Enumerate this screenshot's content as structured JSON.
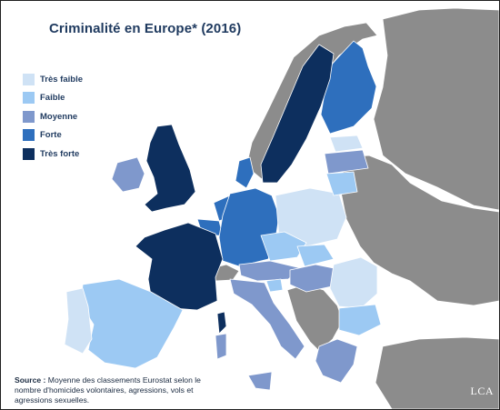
{
  "title": "Criminalité en Europe* (2016)",
  "legend": [
    {
      "label": "Très faible",
      "color": "#cfe2f5"
    },
    {
      "label": "Faible",
      "color": "#9cc9f3"
    },
    {
      "label": "Moyenne",
      "color": "#7f98cc"
    },
    {
      "label": "Forte",
      "color": "#2e6fbd"
    },
    {
      "label": "Très forte",
      "color": "#0d2f5e"
    }
  ],
  "colors": {
    "non_classified": "#8c8c8c",
    "sea": "#ffffff",
    "border": "#ffffff"
  },
  "source": {
    "label": "Source :",
    "text": "Moyenne des classements Eurostat selon le nombre d'homicides volontaires, agressions, vols et agressions sexuelles."
  },
  "logo": "LCA",
  "countries": [
    {
      "name": "France",
      "level": "Très forte"
    },
    {
      "name": "United Kingdom",
      "level": "Très forte"
    },
    {
      "name": "Sweden",
      "level": "Très forte"
    },
    {
      "name": "Finland",
      "level": "Forte"
    },
    {
      "name": "Germany",
      "level": "Forte"
    },
    {
      "name": "Denmark",
      "level": "Forte"
    },
    {
      "name": "Belgium",
      "level": "Forte"
    },
    {
      "name": "Netherlands",
      "level": "Forte"
    },
    {
      "name": "Ireland",
      "level": "Moyenne"
    },
    {
      "name": "Italy",
      "level": "Moyenne"
    },
    {
      "name": "Austria",
      "level": "Moyenne"
    },
    {
      "name": "Hungary",
      "level": "Moyenne"
    },
    {
      "name": "Latvia",
      "level": "Moyenne"
    },
    {
      "name": "Greece",
      "level": "Moyenne"
    },
    {
      "name": "Spain",
      "level": "Faible"
    },
    {
      "name": "Czech Republic",
      "level": "Faible"
    },
    {
      "name": "Slovakia",
      "level": "Faible"
    },
    {
      "name": "Lithuania",
      "level": "Faible"
    },
    {
      "name": "Bulgaria",
      "level": "Faible"
    },
    {
      "name": "Slovenia",
      "level": "Faible"
    },
    {
      "name": "Portugal",
      "level": "Très faible"
    },
    {
      "name": "Poland",
      "level": "Très faible"
    },
    {
      "name": "Romania",
      "level": "Très faible"
    },
    {
      "name": "Estonia",
      "level": "Très faible"
    }
  ]
}
